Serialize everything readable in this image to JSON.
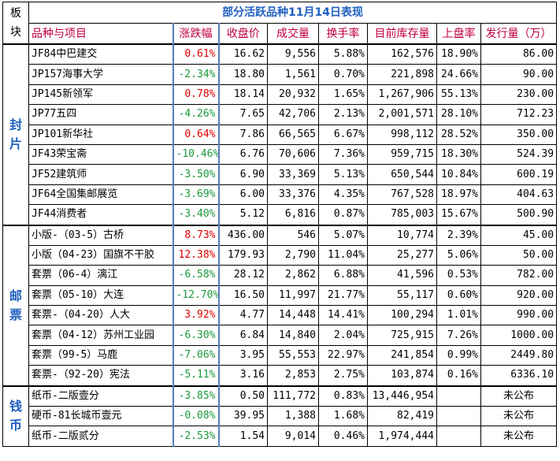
{
  "title": "部分活跃品种11月14日表现",
  "corner_label": "板块",
  "headers": [
    "品种与项目",
    "涨跌幅",
    "收盘价",
    "成交量",
    "换手率",
    "目前库存量",
    "上盘率",
    "发行量（万）"
  ],
  "colors": {
    "up": "#e00000",
    "down": "#1a9a3a",
    "header_text": "#c0003a",
    "title_text": "#1f5fbf"
  },
  "sections": [
    {
      "label": "封片",
      "rows": [
        {
          "name": "JF84中巴建交",
          "change": "0.61%",
          "dir": "up",
          "close": "16.62",
          "volume": "9,556",
          "turnover": "5.88%",
          "stock": "162,576",
          "rate": "18.90%",
          "issue": "86.00"
        },
        {
          "name": "JP157海事大学",
          "change": "-2.34%",
          "dir": "down",
          "close": "18.80",
          "volume": "1,561",
          "turnover": "0.70%",
          "stock": "221,898",
          "rate": "24.66%",
          "issue": "90.00"
        },
        {
          "name": "JP145新领军",
          "change": "0.78%",
          "dir": "up",
          "close": "18.14",
          "volume": "20,932",
          "turnover": "1.65%",
          "stock": "1,267,906",
          "rate": "55.13%",
          "issue": "230.00"
        },
        {
          "name": "JP77五四",
          "change": "-4.26%",
          "dir": "down",
          "close": "7.65",
          "volume": "42,706",
          "turnover": "2.13%",
          "stock": "2,001,571",
          "rate": "28.10%",
          "issue": "712.23"
        },
        {
          "name": "JP101新华社",
          "change": "0.64%",
          "dir": "up",
          "close": "7.86",
          "volume": "66,565",
          "turnover": "6.67%",
          "stock": "998,112",
          "rate": "28.52%",
          "issue": "350.00"
        },
        {
          "name": "JF43荣宝斋",
          "change": "-10.46%",
          "dir": "down",
          "close": "6.76",
          "volume": "70,606",
          "turnover": "7.36%",
          "stock": "959,715",
          "rate": "18.30%",
          "issue": "524.39"
        },
        {
          "name": "JF52建筑师",
          "change": "-3.50%",
          "dir": "down",
          "close": "6.90",
          "volume": "33,369",
          "turnover": "5.13%",
          "stock": "650,544",
          "rate": "10.84%",
          "issue": "600.19"
        },
        {
          "name": "JF64全国集邮展览",
          "change": "-3.69%",
          "dir": "down",
          "close": "6.00",
          "volume": "33,376",
          "turnover": "4.35%",
          "stock": "767,528",
          "rate": "18.97%",
          "issue": "404.63"
        },
        {
          "name": "JF44消费者",
          "change": "-3.40%",
          "dir": "down",
          "close": "5.12",
          "volume": "6,816",
          "turnover": "0.87%",
          "stock": "785,003",
          "rate": "15.67%",
          "issue": "500.90"
        }
      ]
    },
    {
      "label": "邮票",
      "rows": [
        {
          "name": "小版-（03-5）古桥",
          "change": "8.73%",
          "dir": "up",
          "close": "436.00",
          "volume": "546",
          "turnover": "5.07%",
          "stock": "10,774",
          "rate": "2.39%",
          "issue": "45.00"
        },
        {
          "name": "小版（04-23）国旗不干胶",
          "change": "12.38%",
          "dir": "up",
          "close": "179.93",
          "volume": "2,790",
          "turnover": "11.04%",
          "stock": "25,277",
          "rate": "5.06%",
          "issue": "50.00"
        },
        {
          "name": "套票（06-4）漓江",
          "change": "-6.58%",
          "dir": "down",
          "close": "28.12",
          "volume": "2,862",
          "turnover": "6.88%",
          "stock": "41,596",
          "rate": "0.53%",
          "issue": "782.00"
        },
        {
          "name": "套票（05-10）大连",
          "change": "-12.70%",
          "dir": "down",
          "close": "16.50",
          "volume": "11,997",
          "turnover": "21.77%",
          "stock": "55,117",
          "rate": "0.60%",
          "issue": "920.00"
        },
        {
          "name": "套票-（04-20）人大",
          "change": "3.92%",
          "dir": "up",
          "close": "4.77",
          "volume": "14,448",
          "turnover": "14.41%",
          "stock": "100,294",
          "rate": "1.01%",
          "issue": "990.00"
        },
        {
          "name": "套票（04-12）苏州工业园",
          "change": "-6.30%",
          "dir": "down",
          "close": "6.84",
          "volume": "14,840",
          "turnover": "2.04%",
          "stock": "725,915",
          "rate": "7.26%",
          "issue": "1000.00"
        },
        {
          "name": "套票（99-5）马鹿",
          "change": "-7.06%",
          "dir": "down",
          "close": "3.95",
          "volume": "55,553",
          "turnover": "22.97%",
          "stock": "241,854",
          "rate": "0.99%",
          "issue": "2449.80"
        },
        {
          "name": "套票-（92-20）宪法",
          "change": "-5.11%",
          "dir": "down",
          "close": "3.16",
          "volume": "2,853",
          "turnover": "2.75%",
          "stock": "103,874",
          "rate": "0.16%",
          "issue": "6336.10"
        }
      ]
    },
    {
      "label": "钱币",
      "rows": [
        {
          "name": "纸币-二版壹分",
          "change": "-3.85%",
          "dir": "down",
          "close": "0.50",
          "volume": "111,772",
          "turnover": "0.83%",
          "stock": "13,446,954",
          "rate": "",
          "issue": "未公布"
        },
        {
          "name": "硬币-81长城币壹元",
          "change": "-0.08%",
          "dir": "down",
          "close": "39.95",
          "volume": "1,388",
          "turnover": "1.68%",
          "stock": "82,419",
          "rate": "",
          "issue": "未公布"
        },
        {
          "name": "纸币-二版贰分",
          "change": "-2.53%",
          "dir": "down",
          "close": "1.54",
          "volume": "9,014",
          "turnover": "0.46%",
          "stock": "1,974,444",
          "rate": "",
          "issue": "未公布"
        }
      ]
    }
  ]
}
